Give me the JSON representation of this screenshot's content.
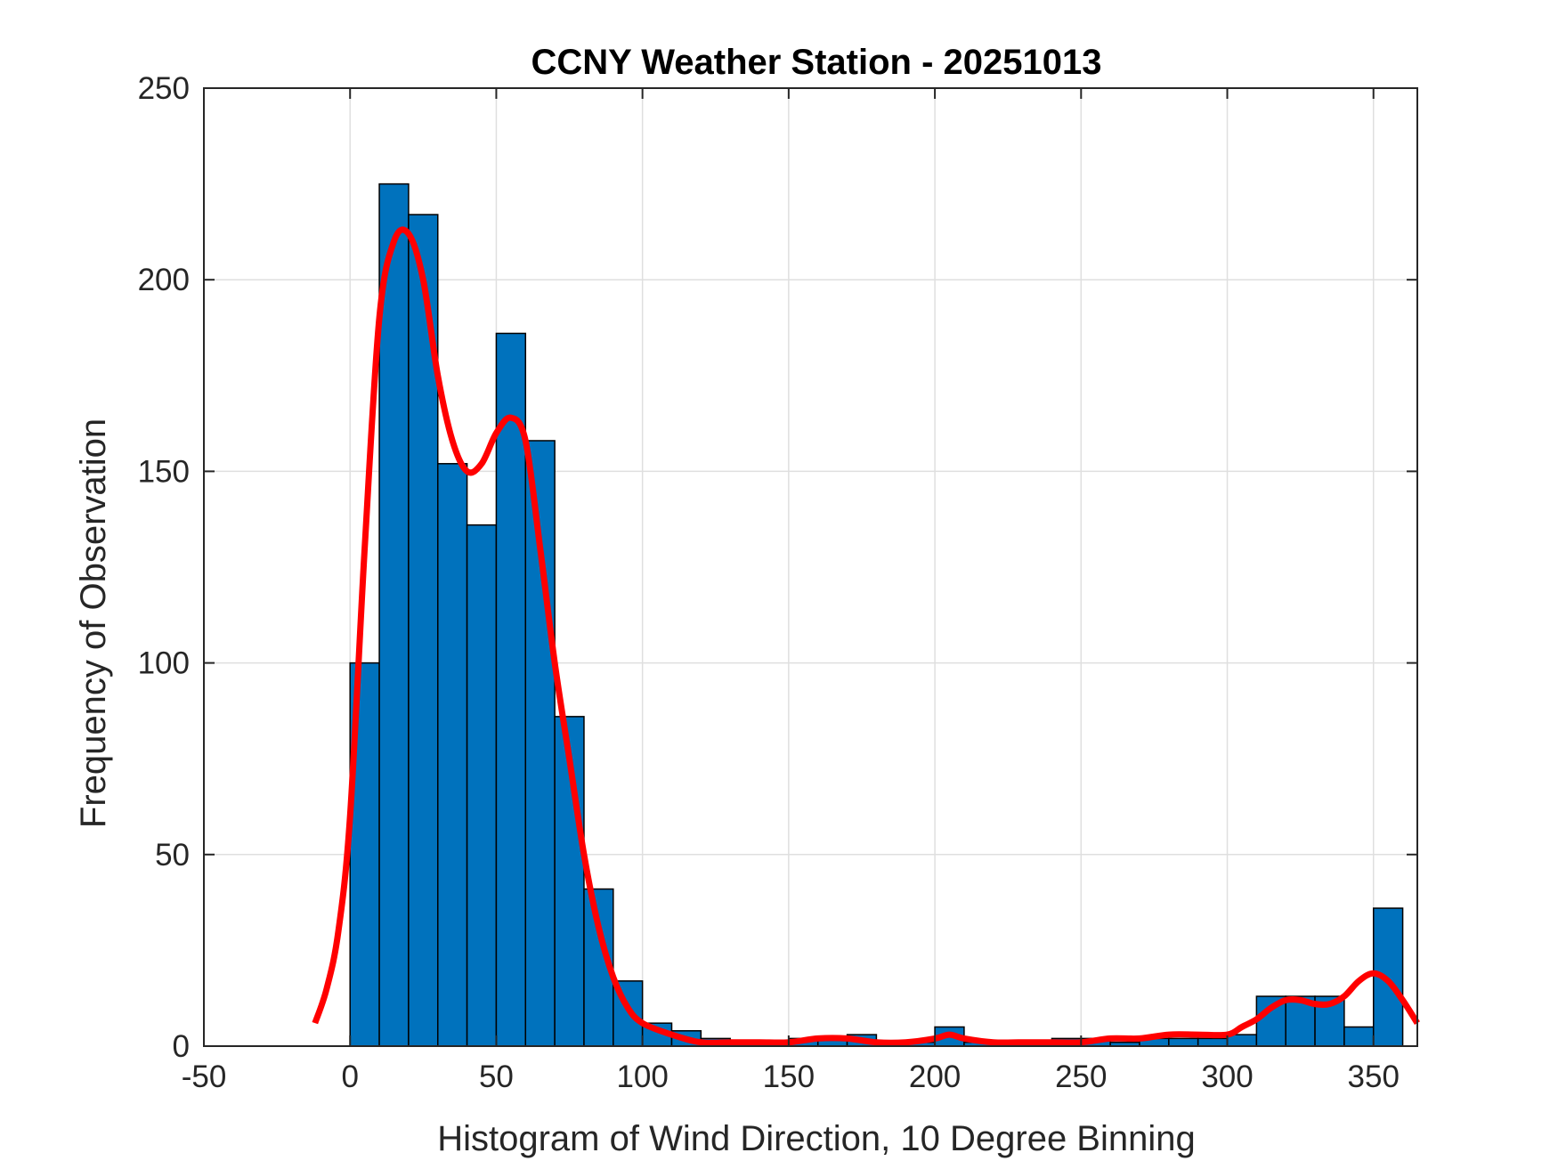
{
  "chart_data": {
    "type": "bar",
    "title": "CCNY Weather Station - 20251013",
    "xlabel": "Histogram of Wind Direction, 10 Degree Binning",
    "ylabel": "Frequency of Observation",
    "xlim": [
      -50,
      365
    ],
    "ylim": [
      0,
      250
    ],
    "xticks": [
      "-50",
      "0",
      "50",
      "100",
      "150",
      "200",
      "250",
      "300",
      "350"
    ],
    "yticks": [
      "0",
      "50",
      "100",
      "150",
      "200",
      "250"
    ],
    "grid": true,
    "bin_width": 10,
    "bin_edges_start": [
      0,
      10,
      20,
      30,
      40,
      50,
      60,
      70,
      80,
      90,
      100,
      110,
      120,
      130,
      140,
      150,
      160,
      170,
      180,
      190,
      200,
      210,
      220,
      230,
      240,
      250,
      260,
      270,
      280,
      290,
      300,
      310,
      320,
      330,
      340,
      350
    ],
    "values": [
      100,
      225,
      217,
      152,
      136,
      186,
      158,
      86,
      41,
      17,
      6,
      4,
      2,
      0,
      1,
      2,
      2,
      3,
      1,
      1,
      5,
      1,
      1,
      1,
      2,
      2,
      1,
      2,
      2,
      2,
      3,
      13,
      13,
      13,
      5,
      36
    ],
    "bar_color": "#0072BD",
    "curve_color": "#FF0000",
    "density_curve": {
      "x": [
        -12,
        -8,
        -4,
        0,
        5,
        10,
        15,
        20,
        25,
        30,
        35,
        40,
        45,
        50,
        55,
        60,
        65,
        70,
        75,
        80,
        85,
        90,
        95,
        100,
        110,
        120,
        130,
        140,
        150,
        160,
        170,
        180,
        190,
        200,
        205,
        210,
        220,
        230,
        240,
        250,
        260,
        270,
        280,
        290,
        300,
        305,
        310,
        315,
        320,
        325,
        330,
        335,
        340,
        345,
        350,
        355,
        360,
        365
      ],
      "y": [
        6,
        15,
        30,
        60,
        130,
        190,
        210,
        212,
        200,
        175,
        158,
        150,
        152,
        160,
        164,
        158,
        130,
        100,
        75,
        50,
        31,
        18,
        10,
        6,
        3,
        1,
        1,
        1,
        1,
        2,
        2,
        1,
        1,
        2,
        3,
        2,
        1,
        1,
        1,
        1,
        2,
        2,
        3,
        3,
        3,
        5,
        7,
        10,
        12,
        12,
        11,
        11,
        13,
        17,
        19,
        17,
        12,
        6
      ]
    }
  }
}
